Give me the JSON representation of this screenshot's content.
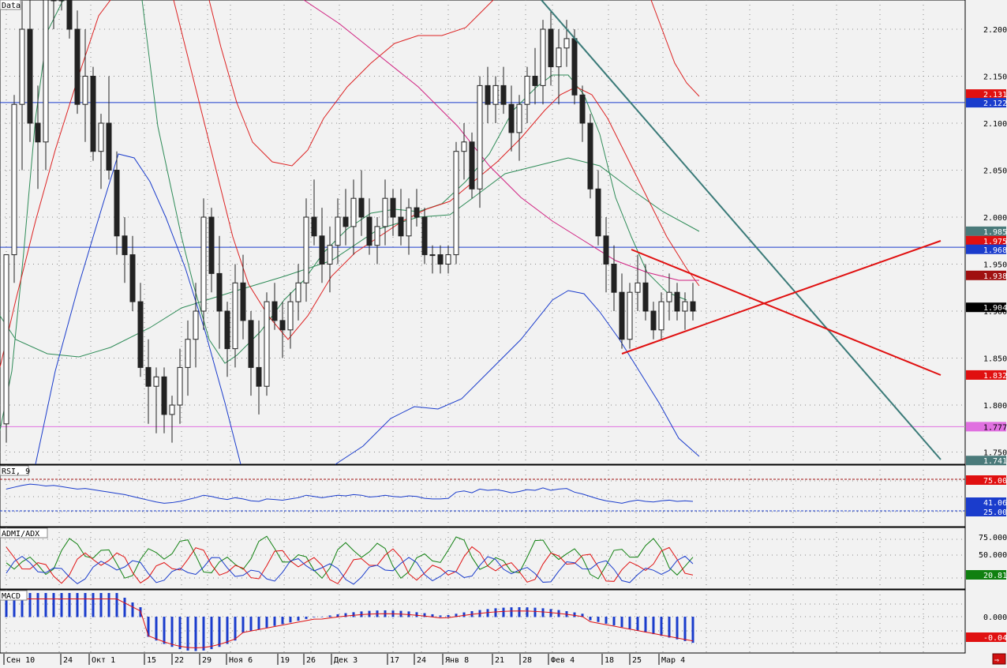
{
  "panels": {
    "price": {
      "label": "Data"
    },
    "rsi": {
      "label": "RSI, 9"
    },
    "adx": {
      "label": "ADMI/ADX"
    },
    "macd": {
      "label": "MACD"
    }
  },
  "price_ticks": [
    "2.200",
    "2.150",
    "2.100",
    "2.050",
    "2.000",
    "1.950",
    "1.900",
    "1.850",
    "1.800",
    "1.750"
  ],
  "rsi_ticks": [
    "75.00",
    "25.00"
  ],
  "adx_ticks": [
    "75.000",
    "50.000"
  ],
  "macd_ticks": [
    "0.000"
  ],
  "x_labels": [
    "Сен 10",
    "24",
    "Окт 1",
    "15",
    "22",
    "29",
    "Ноя 6",
    "19",
    "26",
    "Дек 3",
    "17",
    "24",
    "Янв 8",
    "21",
    "28",
    "Фев 4",
    "18",
    "25",
    "Мар 4"
  ],
  "price_badges": [
    {
      "value": "2.131",
      "color": "#e01010",
      "price": 2.131
    },
    {
      "value": "2.122",
      "color": "#1a3ccc",
      "price": 2.122
    },
    {
      "value": "1.985",
      "color": "#4a7a7a",
      "price": 1.985
    },
    {
      "value": "1.975",
      "color": "#e01010",
      "price": 1.975
    },
    {
      "value": "1.968",
      "color": "#1a3ccc",
      "price": 1.968
    },
    {
      "value": "1.938",
      "color": "#a01010",
      "price": 1.938
    },
    {
      "value": "1.904",
      "color": "#000000",
      "price": 1.904
    },
    {
      "value": "1.832",
      "color": "#e01010",
      "price": 1.832
    },
    {
      "value": "1.777",
      "color": "#e070e0",
      "price": 1.777
    },
    {
      "value": "1.741",
      "color": "#4a7a7a",
      "price": 1.741
    }
  ],
  "rsi_badges": [
    {
      "value": "75.00",
      "color": "#e01010",
      "level": 75
    },
    {
      "value": "41.06",
      "color": "#1a3ccc",
      "level": 41.06
    },
    {
      "value": "25.00",
      "color": "#1a3ccc",
      "level": 25
    }
  ],
  "adx_badges": [
    {
      "value": "20.814",
      "color": "#108010",
      "level": 20.814
    }
  ],
  "macd_badges": [
    {
      "value": "-0.042",
      "color": "#e01010",
      "level": -0.042
    }
  ],
  "colors": {
    "up": "#ffffff",
    "down": "#222222",
    "ma_green": "#2e8b57",
    "ma_red": "#dd2222",
    "ma_blue": "#1a3ccc",
    "ma_pink": "#d02080",
    "trend_teal": "#3a7a78",
    "macd_hist": "#1a3ccc"
  },
  "chart_data": {
    "type": "candlestick",
    "x_labels": [
      "Сен 10",
      "24",
      "Окт 1",
      "15",
      "22",
      "29",
      "Ноя 6",
      "19",
      "26",
      "Дек 3",
      "17",
      "24",
      "Янв 8",
      "21",
      "28",
      "Фев 4",
      "18",
      "25",
      "Мар 4"
    ],
    "ylim": [
      1.725,
      2.225
    ],
    "horizontal_lines": [
      2.122,
      1.968,
      1.777
    ],
    "candles": [
      [
        1.78,
        1.96,
        1.76,
        1.96
      ],
      [
        1.96,
        2.13,
        1.93,
        2.12
      ],
      [
        2.12,
        2.23,
        2.05,
        2.2
      ],
      [
        2.2,
        2.24,
        2.08,
        2.1
      ],
      [
        2.1,
        2.14,
        2.03,
        2.08
      ],
      [
        2.08,
        2.26,
        2.05,
        2.25
      ],
      [
        2.25,
        2.3,
        2.2,
        2.28
      ],
      [
        2.28,
        2.31,
        2.22,
        2.3
      ],
      [
        2.3,
        2.3,
        2.19,
        2.2
      ],
      [
        2.2,
        2.22,
        2.11,
        2.12
      ],
      [
        2.12,
        2.2,
        2.08,
        2.15
      ],
      [
        2.15,
        2.16,
        2.06,
        2.07
      ],
      [
        2.07,
        2.11,
        2.03,
        2.1
      ],
      [
        2.1,
        2.15,
        2.04,
        2.05
      ],
      [
        2.05,
        2.07,
        1.96,
        1.98
      ],
      [
        1.98,
        2.0,
        1.93,
        1.96
      ],
      [
        1.96,
        1.98,
        1.9,
        1.91
      ],
      [
        1.91,
        1.93,
        1.83,
        1.84
      ],
      [
        1.84,
        1.87,
        1.78,
        1.82
      ],
      [
        1.82,
        1.84,
        1.77,
        1.83
      ],
      [
        1.83,
        1.84,
        1.77,
        1.79
      ],
      [
        1.79,
        1.81,
        1.76,
        1.8
      ],
      [
        1.8,
        1.86,
        1.78,
        1.84
      ],
      [
        1.84,
        1.89,
        1.81,
        1.87
      ],
      [
        1.87,
        1.93,
        1.84,
        1.9
      ],
      [
        1.9,
        2.02,
        1.88,
        2.0
      ],
      [
        2.0,
        2.01,
        1.92,
        1.94
      ],
      [
        1.94,
        1.98,
        1.86,
        1.9
      ],
      [
        1.9,
        1.91,
        1.83,
        1.86
      ],
      [
        1.86,
        1.95,
        1.84,
        1.93
      ],
      [
        1.93,
        1.96,
        1.87,
        1.89
      ],
      [
        1.89,
        1.9,
        1.81,
        1.84
      ],
      [
        1.84,
        1.89,
        1.79,
        1.82
      ],
      [
        1.82,
        1.92,
        1.81,
        1.91
      ],
      [
        1.91,
        1.93,
        1.88,
        1.89
      ],
      [
        1.89,
        1.91,
        1.85,
        1.88
      ],
      [
        1.88,
        1.92,
        1.86,
        1.91
      ],
      [
        1.91,
        1.95,
        1.89,
        1.93
      ],
      [
        1.93,
        2.02,
        1.91,
        2.0
      ],
      [
        2.0,
        2.04,
        1.97,
        1.98
      ],
      [
        1.98,
        2.01,
        1.93,
        1.95
      ],
      [
        1.95,
        1.99,
        1.92,
        1.97
      ],
      [
        1.97,
        2.02,
        1.95,
        2.0
      ],
      [
        2.0,
        2.03,
        1.97,
        1.99
      ],
      [
        1.99,
        2.04,
        1.96,
        2.02
      ],
      [
        2.02,
        2.05,
        1.98,
        2.0
      ],
      [
        2.0,
        2.02,
        1.96,
        1.97
      ],
      [
        1.97,
        2.0,
        1.95,
        1.99
      ],
      [
        1.99,
        2.04,
        1.97,
        2.02
      ],
      [
        2.02,
        2.03,
        1.98,
        2.0
      ],
      [
        2.0,
        2.03,
        1.97,
        1.98
      ],
      [
        1.98,
        2.02,
        1.96,
        2.01
      ],
      [
        2.01,
        2.03,
        1.99,
        2.0
      ],
      [
        2.0,
        2.01,
        1.95,
        1.96
      ],
      [
        1.96,
        1.97,
        1.94,
        1.96
      ],
      [
        1.96,
        1.97,
        1.94,
        1.95
      ],
      [
        1.95,
        1.97,
        1.94,
        1.96
      ],
      [
        1.96,
        2.08,
        1.95,
        2.07
      ],
      [
        2.07,
        2.1,
        2.04,
        2.08
      ],
      [
        2.08,
        2.09,
        2.02,
        2.03
      ],
      [
        2.03,
        2.15,
        2.01,
        2.14
      ],
      [
        2.14,
        2.16,
        2.1,
        2.12
      ],
      [
        2.12,
        2.15,
        2.1,
        2.14
      ],
      [
        2.14,
        2.16,
        2.11,
        2.12
      ],
      [
        2.12,
        2.14,
        2.07,
        2.09
      ],
      [
        2.09,
        2.13,
        2.06,
        2.12
      ],
      [
        2.12,
        2.16,
        2.1,
        2.15
      ],
      [
        2.15,
        2.18,
        2.12,
        2.14
      ],
      [
        2.14,
        2.21,
        2.12,
        2.2
      ],
      [
        2.2,
        2.22,
        2.14,
        2.16
      ],
      [
        2.16,
        2.2,
        2.12,
        2.18
      ],
      [
        2.18,
        2.21,
        2.16,
        2.19
      ],
      [
        2.19,
        2.2,
        2.12,
        2.13
      ],
      [
        2.13,
        2.14,
        2.08,
        2.1
      ],
      [
        2.1,
        2.11,
        2.02,
        2.03
      ],
      [
        2.03,
        2.05,
        1.97,
        1.98
      ],
      [
        1.98,
        2.0,
        1.92,
        1.95
      ],
      [
        1.95,
        1.97,
        1.9,
        1.92
      ],
      [
        1.92,
        1.94,
        1.86,
        1.87
      ],
      [
        1.87,
        1.93,
        1.86,
        1.92
      ],
      [
        1.92,
        1.96,
        1.9,
        1.93
      ],
      [
        1.93,
        1.95,
        1.89,
        1.9
      ],
      [
        1.9,
        1.91,
        1.87,
        1.88
      ],
      [
        1.88,
        1.92,
        1.87,
        1.91
      ],
      [
        1.91,
        1.94,
        1.89,
        1.92
      ],
      [
        1.92,
        1.93,
        1.89,
        1.9
      ],
      [
        1.9,
        1.92,
        1.88,
        1.91
      ],
      [
        1.91,
        1.93,
        1.89,
        1.9
      ]
    ],
    "series": [
      {
        "values": [
          1.8,
          1.85,
          1.92,
          1.99,
          2.05,
          2.1,
          2.15,
          2.18,
          2.18,
          2.16,
          2.13,
          2.1,
          2.07,
          2.03,
          1.99,
          1.95,
          1.91,
          1.88,
          1.86,
          1.84,
          1.83,
          1.82,
          1.83,
          1.85,
          1.88,
          1.91,
          1.92,
          1.92,
          1.91,
          1.91,
          1.91,
          1.9,
          1.89,
          1.89,
          1.89,
          1.89,
          1.9,
          1.91,
          1.93,
          1.95,
          1.96,
          1.97,
          1.98,
          1.98,
          1.99,
          1.99,
          1.99,
          1.99,
          1.99,
          2.0,
          2.0,
          2.0,
          2.0,
          1.99,
          1.98,
          1.97,
          1.97,
          1.98,
          2.0,
          2.01,
          2.04,
          2.07,
          2.09,
          2.11,
          2.12,
          2.12,
          2.13,
          2.14,
          2.15,
          2.16,
          2.16,
          2.17,
          2.16,
          2.15,
          2.13,
          2.11,
          2.08,
          2.05,
          2.01,
          1.98,
          1.96,
          1.94,
          1.93,
          1.92,
          1.92,
          1.91,
          1.91,
          1.91
        ],
        "color": "#2e8b57"
      },
      {
        "values": [
          1.86,
          1.92,
          1.98,
          2.04,
          2.09,
          2.14,
          2.17,
          2.19,
          2.2,
          2.19,
          2.17,
          2.14,
          2.11,
          2.08,
          2.05,
          2.02,
          1.99,
          1.96,
          1.93,
          1.9,
          1.88,
          1.87,
          1.86,
          1.87,
          1.88,
          1.89,
          1.9,
          1.9,
          1.9,
          1.9,
          1.9,
          1.9,
          1.9,
          1.9,
          1.91,
          1.92,
          1.93,
          1.94,
          1.95,
          1.96,
          1.97,
          1.97,
          1.98,
          1.98,
          1.99,
          1.99,
          1.99,
          1.99,
          1.99,
          2.0,
          2.0,
          2.0,
          2.0,
          2.0,
          2.0,
          1.99,
          1.99,
          2.0,
          2.02,
          2.03,
          2.05,
          2.07,
          2.08,
          2.09,
          2.1,
          2.11,
          2.12,
          2.12,
          2.13,
          2.13,
          2.14,
          2.14,
          2.14,
          2.13,
          2.12,
          2.1,
          2.08,
          2.06,
          2.03,
          2.0,
          1.98,
          1.96,
          1.95,
          1.94,
          1.93,
          1.92,
          1.92,
          1.92
        ],
        "color": "#dd2222"
      }
    ],
    "rsi": [
      70,
      73,
      76,
      78,
      77,
      75,
      76,
      74,
      72,
      70,
      71,
      69,
      67,
      65,
      63,
      61,
      58,
      55,
      52,
      49,
      47,
      48,
      50,
      53,
      56,
      60,
      58,
      55,
      53,
      56,
      54,
      51,
      50,
      54,
      53,
      52,
      54,
      56,
      60,
      58,
      56,
      58,
      60,
      59,
      61,
      60,
      57,
      58,
      60,
      58,
      57,
      59,
      58,
      55,
      54,
      54,
      55,
      65,
      67,
      64,
      70,
      68,
      69,
      67,
      64,
      66,
      69,
      68,
      72,
      68,
      70,
      71,
      65,
      62,
      58,
      54,
      51,
      49,
      47,
      50,
      52,
      50,
      49,
      51,
      52,
      50,
      51,
      50
    ]
  }
}
